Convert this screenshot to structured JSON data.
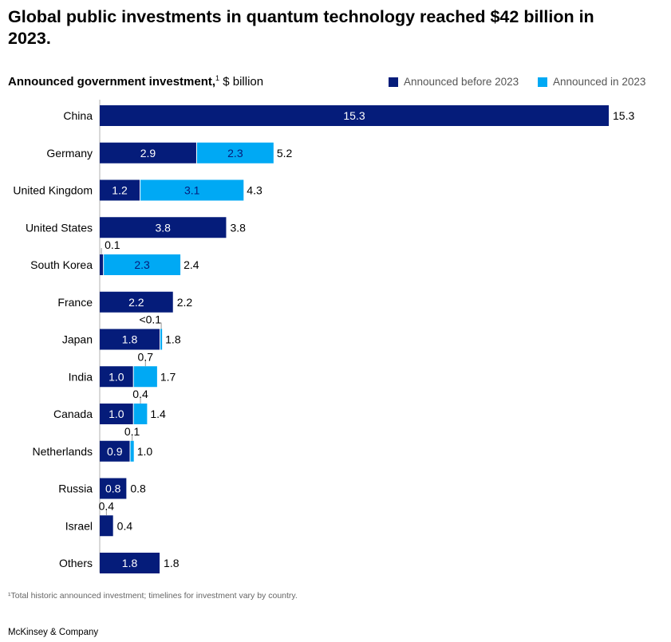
{
  "title": "Global public investments in quantum technology reached $42 billion in 2023.",
  "subtitle_bold": "Announced government investment,",
  "subtitle_sup": "1",
  "subtitle_unit": " $ billion",
  "footnote": "¹Total historic announced investment; timelines for investment vary by country.",
  "source": "McKinsey & Company",
  "colors": {
    "before": "#051c7a",
    "in2023": "#00a9f4"
  },
  "chart_data": {
    "type": "bar",
    "orientation": "horizontal",
    "stacked": true,
    "legend_placement": "top-right",
    "categories": [
      "China",
      "Germany",
      "United Kingdom",
      "United States",
      "South Korea",
      "France",
      "Japan",
      "India",
      "Canada",
      "Netherlands",
      "Russia",
      "Israel",
      "Others"
    ],
    "series": [
      {
        "name": "Announced before 2023",
        "values": [
          15.3,
          2.9,
          1.2,
          3.8,
          0.1,
          2.2,
          1.8,
          1.0,
          1.0,
          0.9,
          0.8,
          0.4,
          1.8
        ],
        "labels": [
          "15.3",
          "2.9",
          "1.2",
          "3.8",
          "0.1",
          "2.2",
          "1.8",
          "1.0",
          "1.0",
          "0.9",
          "0.8",
          "0.4",
          "1.8"
        ]
      },
      {
        "name": "Announced in 2023",
        "values": [
          0,
          2.3,
          3.1,
          0,
          2.3,
          0,
          0.05,
          0.7,
          0.4,
          0.1,
          0,
          0,
          0
        ],
        "labels": [
          "",
          "2.3",
          "3.1",
          "",
          "2.3",
          "",
          "<0.1",
          "0.7",
          "0.4",
          "0.1",
          "",
          "",
          ""
        ]
      }
    ],
    "totals": [
      "15.3",
      "5.2",
      "4.3",
      "3.8",
      "2.4",
      "2.2",
      "1.8",
      "1.7",
      "1.4",
      "1.0",
      "0.8",
      "0.4",
      "1.8"
    ],
    "xlim": [
      0,
      15.3
    ]
  }
}
